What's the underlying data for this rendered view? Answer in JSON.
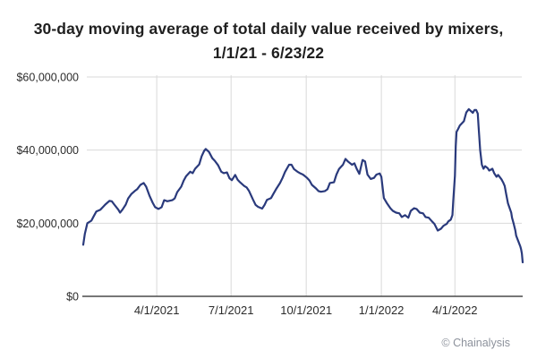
{
  "header": {
    "title_line1": "30-day moving average of total daily value received by mixers,",
    "title_line2": "1/1/21 - 6/23/22"
  },
  "footer": {
    "attribution": "© Chainalysis"
  },
  "colors": {
    "background": "#ffffff",
    "line": "#2a3a7c",
    "grid": "#d9d9d9",
    "axis": "#4a4a4a",
    "title_text": "#1f1f1f",
    "tick_text": "#2b2b2b",
    "attribution_text": "#8d929c"
  },
  "chart_data": {
    "type": "line",
    "title": "30-day moving average of total daily value received by mixers, 1/1/21 - 6/23/22",
    "xlabel": "",
    "ylabel": "",
    "grid": true,
    "legend": "none",
    "x_axis": {
      "unit": "days since 1/1/2021",
      "min_day": 0,
      "max_day": 538,
      "ticks": [
        {
          "day": 90,
          "label": "4/1/2021"
        },
        {
          "day": 181,
          "label": "7/1/2021"
        },
        {
          "day": 273,
          "label": "10/1/2021"
        },
        {
          "day": 365,
          "label": "1/1/2022"
        },
        {
          "day": 455,
          "label": "4/1/2022"
        }
      ]
    },
    "y_axis": {
      "unit": "USD millions",
      "min_millions": 0,
      "max_millions": 60,
      "ticks": [
        {
          "value_millions": 0,
          "label": "$0"
        },
        {
          "value_millions": 20,
          "label": "$20,000,000"
        },
        {
          "value_millions": 40,
          "label": "$40,000,000"
        },
        {
          "value_millions": 60,
          "label": "$60,000,000"
        }
      ]
    },
    "series": [
      {
        "name": "30-day moving average of total daily value received by mixers (USD millions)",
        "color": "#2a3a7c",
        "points": {
          "day": [
            0,
            2,
            5,
            10,
            13,
            16,
            21,
            24,
            27,
            32,
            35,
            38,
            43,
            45,
            48,
            52,
            55,
            59,
            63,
            66,
            70,
            74,
            77,
            81,
            85,
            88,
            92,
            96,
            99,
            103,
            109,
            112,
            115,
            120,
            123,
            126,
            131,
            134,
            137,
            142,
            145,
            148,
            150,
            154,
            158,
            161,
            165,
            169,
            172,
            176,
            179,
            182,
            186,
            189,
            192,
            197,
            200,
            203,
            208,
            211,
            214,
            219,
            222,
            225,
            230,
            233,
            236,
            241,
            244,
            247,
            252,
            255,
            258,
            263,
            266,
            269,
            274,
            277,
            280,
            285,
            288,
            291,
            296,
            299,
            302,
            307,
            310,
            313,
            318,
            321,
            324,
            329,
            332,
            335,
            338,
            342,
            345,
            348,
            352,
            356,
            359,
            363,
            365,
            368,
            372,
            376,
            379,
            383,
            387,
            390,
            394,
            398,
            401,
            405,
            408,
            412,
            416,
            419,
            423,
            427,
            430,
            434,
            438,
            441,
            445,
            447,
            450,
            452,
            453,
            455,
            456,
            457,
            459,
            461,
            466,
            469,
            472,
            474,
            477,
            479,
            481,
            483,
            484,
            486,
            488,
            490,
            492,
            495,
            497,
            501,
            503,
            506,
            508,
            512,
            514,
            516,
            518,
            520,
            524,
            525,
            527,
            529,
            530,
            533,
            535,
            536,
            537,
            538
          ],
          "value_usd_millions": [
            14.1,
            17.1,
            20.0,
            20.7,
            22.0,
            23.2,
            23.7,
            24.4,
            25.1,
            26.1,
            26.0,
            25.1,
            23.7,
            22.9,
            23.7,
            25.1,
            26.8,
            28.0,
            28.8,
            29.3,
            30.5,
            31.0,
            30.0,
            27.6,
            25.6,
            24.4,
            23.9,
            24.4,
            26.3,
            26.0,
            26.3,
            26.8,
            28.5,
            30.0,
            31.7,
            32.9,
            34.1,
            33.7,
            34.9,
            36.1,
            38.3,
            39.8,
            40.3,
            39.5,
            37.8,
            37.1,
            35.9,
            34.1,
            33.7,
            33.9,
            32.3,
            31.8,
            33.2,
            31.9,
            31.2,
            30.2,
            29.8,
            28.8,
            26.4,
            25.0,
            24.5,
            24.0,
            25.0,
            26.4,
            26.9,
            28.1,
            29.3,
            31.0,
            32.4,
            34.0,
            36.0,
            36.0,
            34.8,
            34.0,
            33.6,
            33.3,
            32.4,
            31.7,
            30.5,
            29.5,
            28.8,
            28.6,
            28.8,
            29.3,
            31.0,
            31.2,
            33.3,
            34.8,
            36.0,
            37.6,
            36.9,
            36.0,
            36.4,
            34.8,
            33.5,
            37.3,
            36.9,
            33.3,
            32.1,
            32.4,
            33.3,
            33.6,
            32.7,
            26.9,
            25.4,
            24.1,
            23.4,
            22.9,
            22.7,
            21.7,
            22.2,
            21.5,
            23.4,
            24.1,
            23.9,
            22.9,
            22.7,
            21.7,
            21.5,
            20.5,
            19.8,
            18.0,
            18.5,
            19.3,
            19.8,
            20.5,
            21.0,
            22.2,
            26.0,
            33.0,
            41.0,
            45.0,
            45.8,
            46.7,
            47.9,
            50.3,
            51.2,
            50.8,
            50.2,
            51.0,
            51.0,
            50.0,
            46.5,
            40.0,
            36.0,
            34.9,
            35.6,
            35.1,
            34.4,
            34.9,
            33.7,
            32.7,
            33.2,
            32.0,
            31.2,
            30.2,
            27.8,
            25.4,
            22.9,
            21.5,
            19.8,
            18.0,
            16.6,
            14.9,
            13.7,
            12.9,
            11.7,
            9.3
          ]
        }
      }
    ]
  }
}
